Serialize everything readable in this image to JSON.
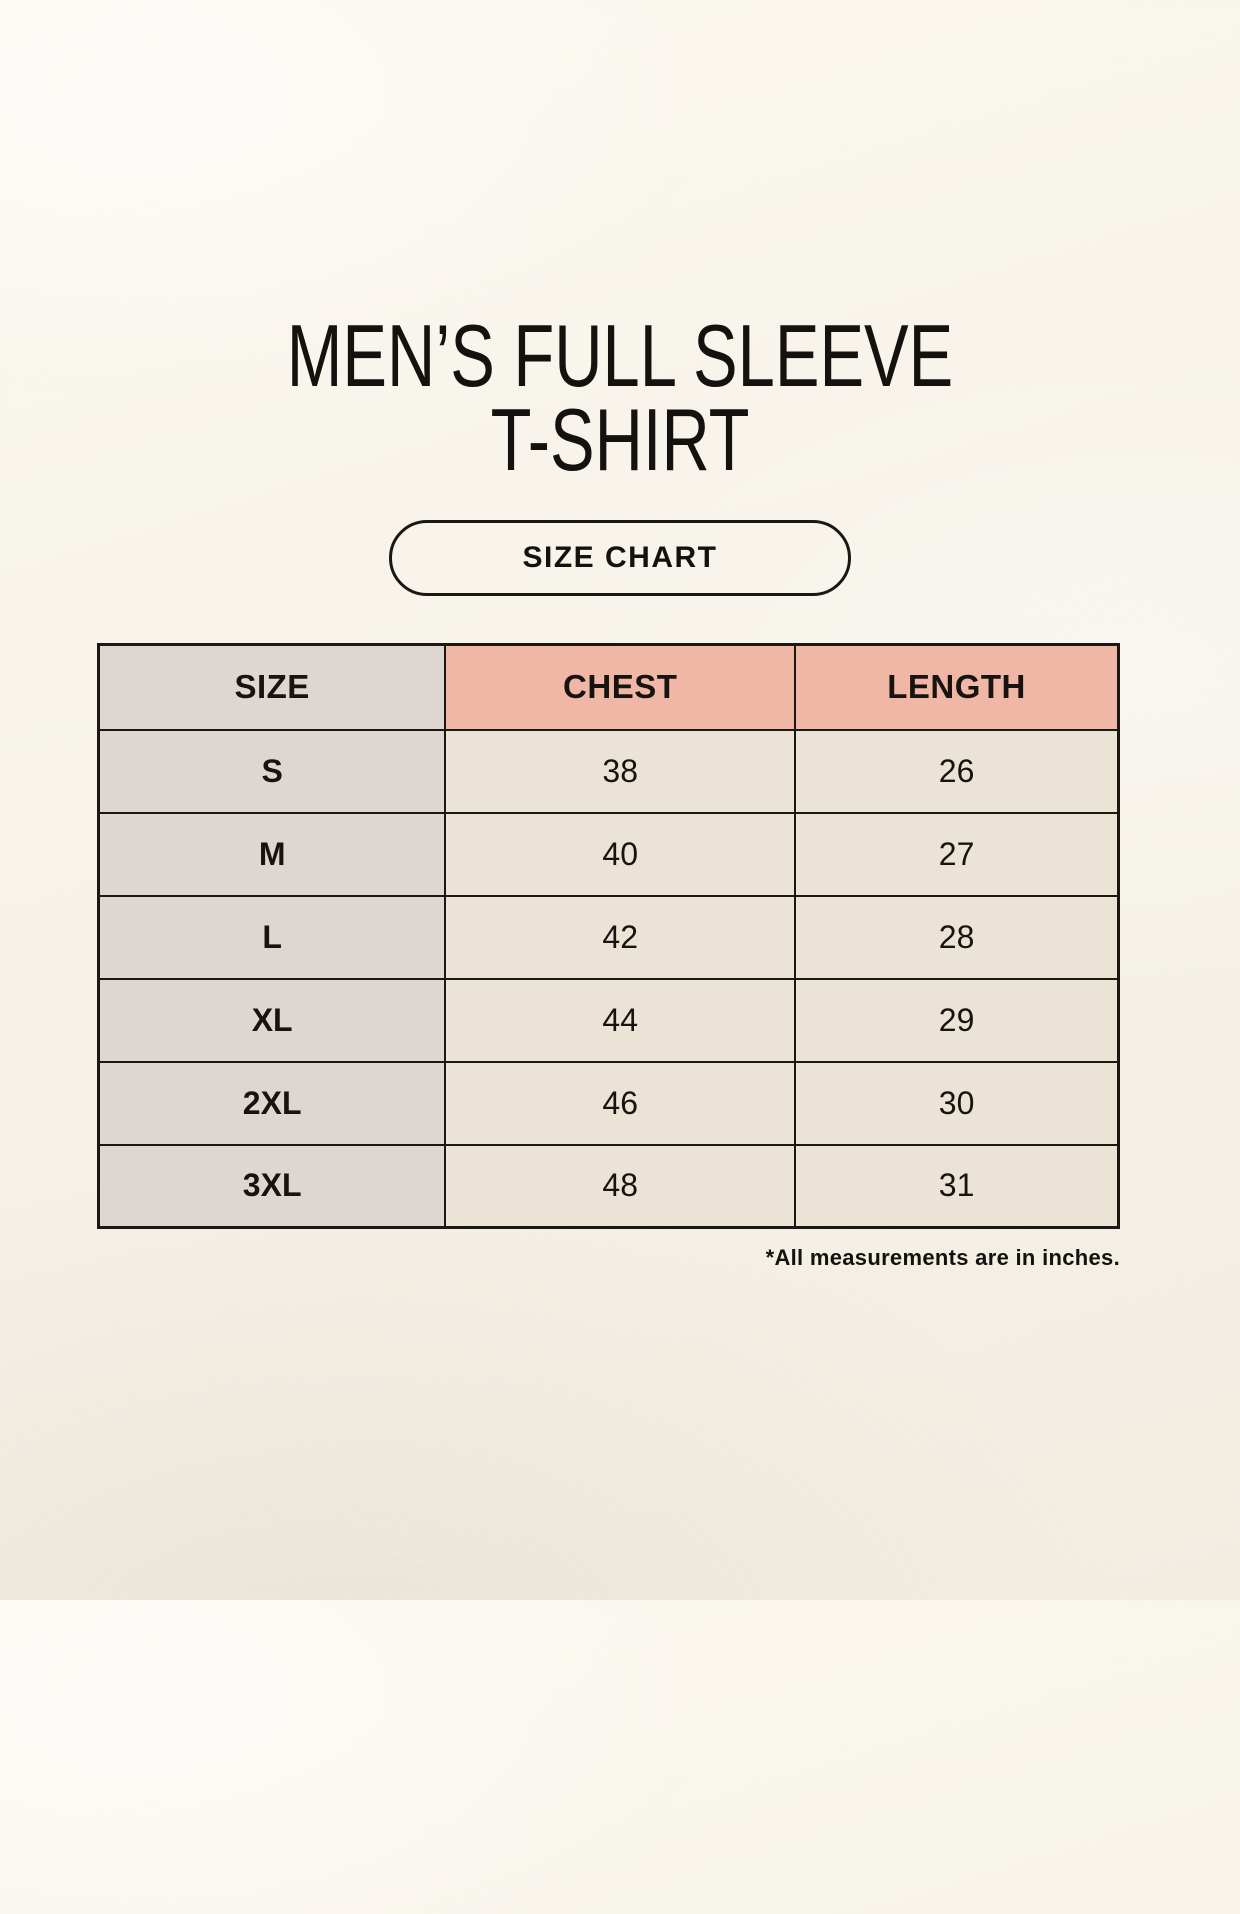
{
  "header": {
    "title_line1": "MEN’S FULL SLEEVE",
    "title_line2": "T-SHIRT",
    "button_label": "SIZE CHART"
  },
  "footnote": "*All measurements are in inches.",
  "colors": {
    "background_cream": "#f7f3ea",
    "header_accent_salmon": "#f0b7a6",
    "size_column_gray": "#ded7d1",
    "value_cell_cream": "#eae3d6",
    "border_black": "#1b1713",
    "text_black": "#14110e"
  },
  "chart_data": {
    "type": "table",
    "title": "MEN’S FULL SLEEVE T-SHIRT",
    "subtitle": "SIZE CHART",
    "columns": [
      "SIZE",
      "CHEST",
      "LENGTH"
    ],
    "rows": [
      [
        "S",
        "38",
        "26"
      ],
      [
        "M",
        "40",
        "27"
      ],
      [
        "L",
        "42",
        "28"
      ],
      [
        "XL",
        "44",
        "29"
      ],
      [
        "2XL",
        "46",
        "30"
      ],
      [
        "3XL",
        "48",
        "31"
      ]
    ],
    "units": "inches",
    "note": "*All measurements are in inches."
  }
}
